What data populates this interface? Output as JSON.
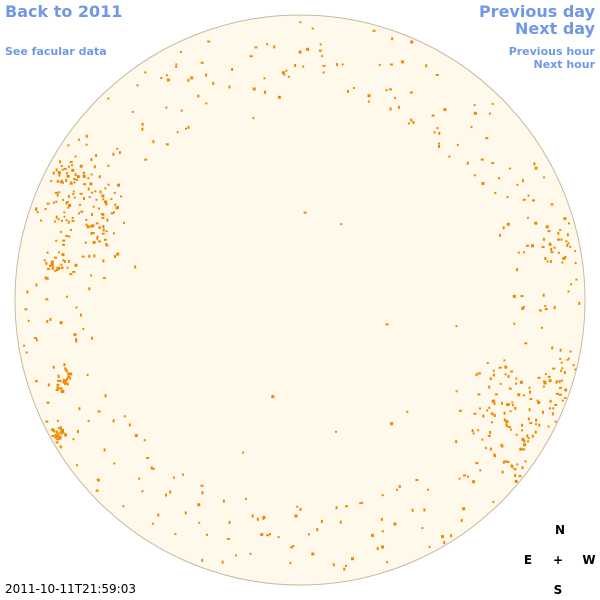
{
  "nav": {
    "back_label": "Back to 2011",
    "facular_label": "See facular data",
    "prev_day_label": "Previous day",
    "next_day_label": "Next day",
    "prev_hour_label": "Previous hour",
    "next_hour_label": "Next hour"
  },
  "timestamp": "2011-10-11T21:59:03",
  "compass": {
    "north": "N",
    "south": "S",
    "east": "E",
    "west": "W",
    "center": "+"
  },
  "colors": {
    "link": "#6f98e6",
    "disk_fill": "#fff9ec",
    "disk_outline": "#c8b8a0",
    "feature": "#ee8800"
  },
  "features": {
    "description_is_visual_only": true,
    "concentrated_regions": [
      {
        "region": "east-upper-limb-cluster",
        "count": 170
      },
      {
        "region": "east-mid-limb-cluster",
        "count": 60
      },
      {
        "region": "west-lower-limb-cluster",
        "count": 150
      },
      {
        "region": "scattered-limb-ring",
        "count": 320
      }
    ]
  }
}
